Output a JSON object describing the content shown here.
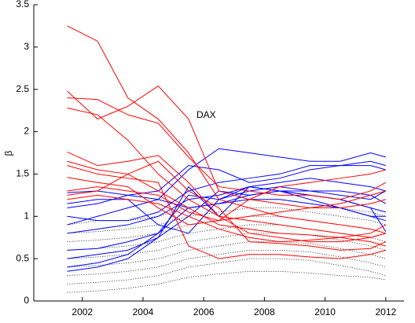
{
  "chart_data": {
    "type": "line",
    "ylabel": "β",
    "annotation": "DAX",
    "x": [
      2001.5,
      2002.5,
      2003.5,
      2004.5,
      2005.5,
      2006.5,
      2007.5,
      2008.5,
      2009.5,
      2010.5,
      2011.5,
      2012
    ],
    "xlim": [
      2000.4,
      2012.6
    ],
    "xticks": [
      2002,
      2004,
      2006,
      2008,
      2010,
      2012
    ],
    "ylim": [
      0,
      3.5
    ],
    "yticks": [
      0,
      0.5,
      1,
      1.5,
      2,
      2.5,
      3,
      3.5
    ],
    "series": [
      {
        "color": "#000000",
        "style": "dotted",
        "values": [
          0.9,
          0.95,
          0.95,
          1.0,
          1.1,
          1.15,
          1.2,
          1.2,
          1.15,
          1.1,
          1.05,
          1.0
        ]
      },
      {
        "color": "#000000",
        "style": "dotted",
        "values": [
          0.8,
          0.82,
          0.85,
          0.9,
          1.0,
          1.05,
          1.1,
          1.1,
          1.05,
          1.0,
          0.95,
          0.9
        ]
      },
      {
        "color": "#000000",
        "style": "dotted",
        "values": [
          0.7,
          0.72,
          0.75,
          0.8,
          0.9,
          0.95,
          1.0,
          1.0,
          0.95,
          0.9,
          0.85,
          0.8
        ]
      },
      {
        "color": "#000000",
        "style": "dotted",
        "values": [
          0.6,
          0.62,
          0.65,
          0.7,
          0.8,
          0.85,
          0.9,
          0.9,
          0.85,
          0.8,
          0.75,
          0.7
        ]
      },
      {
        "color": "#000000",
        "style": "dotted",
        "values": [
          0.5,
          0.52,
          0.55,
          0.6,
          0.7,
          0.75,
          0.8,
          0.8,
          0.78,
          0.72,
          0.65,
          0.6
        ]
      },
      {
        "color": "#000000",
        "style": "dotted",
        "values": [
          0.4,
          0.42,
          0.45,
          0.5,
          0.6,
          0.65,
          0.7,
          0.7,
          0.68,
          0.62,
          0.55,
          0.5
        ]
      },
      {
        "color": "#000000",
        "style": "dotted",
        "values": [
          0.3,
          0.32,
          0.35,
          0.4,
          0.5,
          0.55,
          0.6,
          0.6,
          0.58,
          0.52,
          0.45,
          0.4
        ]
      },
      {
        "color": "#000000",
        "style": "dotted",
        "values": [
          0.2,
          0.22,
          0.25,
          0.3,
          0.4,
          0.45,
          0.5,
          0.5,
          0.48,
          0.42,
          0.35,
          0.3
        ]
      },
      {
        "color": "#000000",
        "style": "dotted",
        "values": [
          0.1,
          0.12,
          0.15,
          0.2,
          0.28,
          0.32,
          0.35,
          0.35,
          0.33,
          0.3,
          0.28,
          0.25
        ]
      },
      {
        "color": "#0000ff",
        "style": "solid",
        "values": [
          0.9,
          1.0,
          1.1,
          1.2,
          1.55,
          1.8,
          1.75,
          1.7,
          1.65,
          1.65,
          1.75,
          1.7
        ]
      },
      {
        "color": "#0000ff",
        "style": "solid",
        "values": [
          1.1,
          1.15,
          1.25,
          1.3,
          1.6,
          1.55,
          1.4,
          1.45,
          1.55,
          1.6,
          1.65,
          1.6
        ]
      },
      {
        "color": "#0000ff",
        "style": "solid",
        "values": [
          1.0,
          0.95,
          0.95,
          1.05,
          1.3,
          1.4,
          1.45,
          1.5,
          1.6,
          1.6,
          1.6,
          1.55
        ]
      },
      {
        "color": "#0000ff",
        "style": "solid",
        "values": [
          0.8,
          0.85,
          0.9,
          1.0,
          1.2,
          1.25,
          1.35,
          1.4,
          1.45,
          1.4,
          1.35,
          1.3
        ]
      },
      {
        "color": "#0000ff",
        "style": "solid",
        "values": [
          0.6,
          0.62,
          0.7,
          0.8,
          1.25,
          1.2,
          1.3,
          1.35,
          1.3,
          1.3,
          1.25,
          1.15
        ]
      },
      {
        "color": "#0000ff",
        "style": "solid",
        "values": [
          0.5,
          0.55,
          0.6,
          0.75,
          1.0,
          1.3,
          1.25,
          1.3,
          1.3,
          1.25,
          1.2,
          1.3
        ]
      },
      {
        "color": "#0000ff",
        "style": "solid",
        "values": [
          0.4,
          0.45,
          0.55,
          0.8,
          1.1,
          1.15,
          1.2,
          1.2,
          1.15,
          1.1,
          1.0,
          1.0
        ]
      },
      {
        "color": "#0000ff",
        "style": "solid",
        "values": [
          0.35,
          0.4,
          0.5,
          0.75,
          1.35,
          1.0,
          1.35,
          1.3,
          1.2,
          1.1,
          1.0,
          0.95
        ]
      },
      {
        "color": "#0000ff",
        "style": "solid",
        "values": [
          1.28,
          1.3,
          1.25,
          1.2,
          1.1,
          1.15,
          1.25,
          1.3,
          1.25,
          1.2,
          1.1,
          0.82
        ]
      },
      {
        "color": "#0000ff",
        "style": "solid",
        "values": [
          1.15,
          1.2,
          1.2,
          0.9,
          0.8,
          1.2,
          1.35,
          1.3,
          1.25,
          1.2,
          1.1,
          1.05
        ]
      },
      {
        "color": "#ff0000",
        "style": "solid",
        "values": [
          3.25,
          3.07,
          2.4,
          2.15,
          1.75,
          1.2,
          1.1,
          1.0,
          0.95,
          0.9,
          0.85,
          0.8
        ]
      },
      {
        "color": "#ff0000",
        "style": "solid",
        "values": [
          2.48,
          2.15,
          2.3,
          2.54,
          2.15,
          1.3,
          1.2,
          1.15,
          1.1,
          1.1,
          1.15,
          1.2
        ]
      },
      {
        "color": "#ff0000",
        "style": "solid",
        "values": [
          2.4,
          2.38,
          2.2,
          2.1,
          1.7,
          1.35,
          1.3,
          1.25,
          1.25,
          1.2,
          1.3,
          1.4
        ]
      },
      {
        "color": "#ff0000",
        "style": "solid",
        "values": [
          2.28,
          2.2,
          1.9,
          1.5,
          1.2,
          1.0,
          0.95,
          0.9,
          0.85,
          0.8,
          0.75,
          0.8
        ]
      },
      {
        "color": "#ff0000",
        "style": "solid",
        "values": [
          1.76,
          1.6,
          1.65,
          1.72,
          1.4,
          1.0,
          0.8,
          0.75,
          0.7,
          0.7,
          0.75,
          0.8
        ]
      },
      {
        "color": "#ff0000",
        "style": "solid",
        "values": [
          1.65,
          1.55,
          1.5,
          1.3,
          1.1,
          0.9,
          0.85,
          0.8,
          0.78,
          0.75,
          0.7,
          0.65
        ]
      },
      {
        "color": "#ff0000",
        "style": "solid",
        "values": [
          1.6,
          1.5,
          1.45,
          1.4,
          0.65,
          0.5,
          0.55,
          0.55,
          0.52,
          0.5,
          0.55,
          0.6
        ]
      },
      {
        "color": "#ff0000",
        "style": "solid",
        "values": [
          1.46,
          1.4,
          1.35,
          1.1,
          0.9,
          0.95,
          1.2,
          1.35,
          1.4,
          1.45,
          1.5,
          1.55
        ]
      },
      {
        "color": "#ff0000",
        "style": "solid",
        "values": [
          1.3,
          1.35,
          1.3,
          1.25,
          1.05,
          0.95,
          1.0,
          1.05,
          1.1,
          1.15,
          1.25,
          1.3
        ]
      },
      {
        "color": "#ff0000",
        "style": "solid",
        "values": [
          1.25,
          1.3,
          1.5,
          1.65,
          1.3,
          1.1,
          0.7,
          0.68,
          0.65,
          0.6,
          0.62,
          0.7
        ]
      },
      {
        "color": "#ff0000",
        "style": "solid",
        "values": [
          1.2,
          1.25,
          1.2,
          1.15,
          1.0,
          0.85,
          0.75,
          0.7,
          0.72,
          0.75,
          0.8,
          0.9
        ]
      }
    ]
  }
}
